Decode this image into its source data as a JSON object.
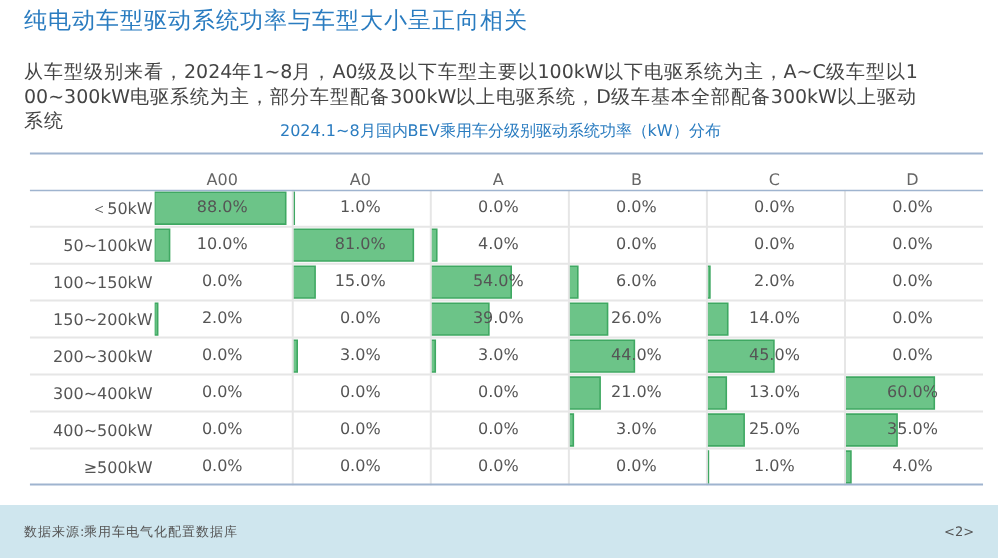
{
  "chart_data": {
    "type": "heatmap",
    "title": "纯电动车型驱动系统功率与车型大小呈正向相关",
    "subtitle": "从车型级别来看，2024年1~8月，A0级及以下车型主要以100kW以下电驱系统为主，A~C级车型以100~300kW电驱系统为主，部分车型配备300kW以上电驱系统，D级车基本全部配备300kW以上驱动系统",
    "annotations": [
      "2024.1~8月国内BEV乘用车分级别驱动系统功率（kW）分布",
      "数据来源:乘用车电气化配置数据库",
      "<2>"
    ],
    "categories": [
      "A00",
      "A0",
      "A",
      "B",
      "C",
      "D"
    ],
    "y_categories": [
      "＜50kW",
      "50~100kW",
      "100~150kW",
      "150~200kW",
      "200~300kW",
      "300~400kW",
      "400~500kW",
      "≥500kW"
    ],
    "cells": [
      [
        88.0,
        1.0,
        0.0,
        0.0,
        0.0,
        0.0
      ],
      [
        10.0,
        81.0,
        4.0,
        0.0,
        0.0,
        0.0
      ],
      [
        0.0,
        15.0,
        54.0,
        6.0,
        2.0,
        0.0
      ],
      [
        2.0,
        0.0,
        39.0,
        26.0,
        14.0,
        0.0
      ],
      [
        0.0,
        3.0,
        3.0,
        44.0,
        45.0,
        0.0
      ],
      [
        0.0,
        0.0,
        0.0,
        21.0,
        13.0,
        60.0
      ],
      [
        0.0,
        0.0,
        0.0,
        3.0,
        25.0,
        35.0
      ],
      [
        0.0,
        0.0,
        0.0,
        0.0,
        1.0,
        4.0
      ]
    ],
    "cell_labels": [
      [
        "88.0%",
        "1.0%",
        "0.0%",
        "0.0%",
        "0.0%",
        "0.0%"
      ],
      [
        "10.0%",
        "81.0%",
        "4.0%",
        "0.0%",
        "0.0%",
        "0.0%"
      ],
      [
        "0.0%",
        "15.0%",
        "54.0%",
        "6.0%",
        "2.0%",
        "0.0%"
      ],
      [
        "2.0%",
        "0.0%",
        "39.0%",
        "26.0%",
        "14.0%",
        "0.0%"
      ],
      [
        "0.0%",
        "3.0%",
        "3.0%",
        "44.0%",
        "45.0%",
        "0.0%"
      ],
      [
        "0.0%",
        "0.0%",
        "0.0%",
        "21.0%",
        "13.0%",
        "60.0%"
      ],
      [
        "0.0%",
        "0.0%",
        "0.0%",
        "3.0%",
        "25.0%",
        "35.0%"
      ],
      [
        "0.0%",
        "0.0%",
        "0.0%",
        "0.0%",
        "1.0%",
        "4.0%"
      ]
    ],
    "color": "#6cc488"
  }
}
